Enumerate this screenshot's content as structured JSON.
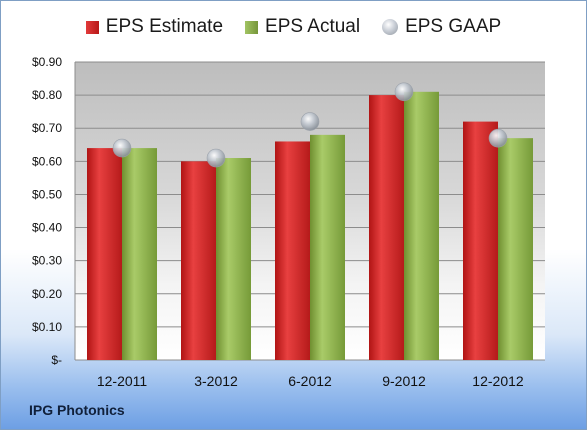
{
  "chart_data": {
    "type": "bar",
    "title": "",
    "xlabel": "",
    "ylabel": "",
    "categories": [
      "12-2011",
      "3-2012",
      "6-2012",
      "9-2012",
      "12-2012"
    ],
    "series": [
      {
        "name": "EPS Estimate",
        "kind": "bar",
        "color": "#cc2222",
        "values": [
          0.64,
          0.6,
          0.66,
          0.8,
          0.72
        ]
      },
      {
        "name": "EPS Actual",
        "kind": "bar",
        "color": "#8aaa4a",
        "values": [
          0.64,
          0.61,
          0.68,
          0.81,
          0.67
        ]
      },
      {
        "name": "EPS GAAP",
        "kind": "marker",
        "color": "#b8bec6",
        "values": [
          0.64,
          0.61,
          0.72,
          0.81,
          0.67
        ]
      }
    ],
    "ylim": [
      0,
      0.9
    ],
    "yticks": [
      0,
      0.1,
      0.2,
      0.3,
      0.4,
      0.5,
      0.6,
      0.7,
      0.8,
      0.9
    ],
    "ytick_labels": [
      "$-",
      "$0.10",
      "$0.20",
      "$0.30",
      "$0.40",
      "$0.50",
      "$0.60",
      "$0.70",
      "$0.80",
      "$0.90"
    ],
    "grid": true,
    "legend_position": "top"
  },
  "footer": {
    "company": "IPG Photonics"
  }
}
